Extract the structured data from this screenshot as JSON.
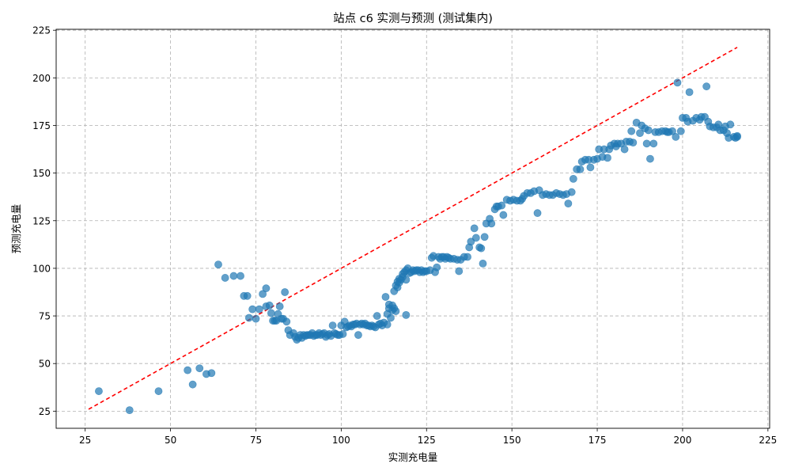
{
  "chart_data": {
    "type": "scatter",
    "title": "站点 c6 实测与预测 (测试集内)",
    "xlabel": "实测充电量",
    "ylabel": "预测充电量",
    "xlim": [
      16.5,
      225.5
    ],
    "ylim": [
      16,
      225.5
    ],
    "xticks": [
      25,
      50,
      75,
      100,
      125,
      150,
      175,
      200,
      225
    ],
    "yticks": [
      25,
      50,
      75,
      100,
      125,
      150,
      175,
      200,
      225
    ],
    "grid": true,
    "point_color": "#1f77b4",
    "reference_line": {
      "style": "dashed",
      "color": "#ff0000",
      "from": [
        26,
        26
      ],
      "to": [
        216,
        216
      ]
    },
    "points": [
      [
        29,
        35.5
      ],
      [
        38,
        25.5
      ],
      [
        46.5,
        35.5
      ],
      [
        55,
        46.5
      ],
      [
        56.5,
        39
      ],
      [
        58.5,
        47.5
      ],
      [
        60.5,
        44.5
      ],
      [
        62,
        45
      ],
      [
        64,
        102
      ],
      [
        66,
        95
      ],
      [
        68.5,
        96
      ],
      [
        70.5,
        96
      ],
      [
        71.5,
        85.5
      ],
      [
        72.5,
        85.5
      ],
      [
        73,
        74
      ],
      [
        74,
        78.5
      ],
      [
        75,
        73.5
      ],
      [
        76,
        78.5
      ],
      [
        77,
        86.5
      ],
      [
        78,
        80
      ],
      [
        78,
        89.5
      ],
      [
        79,
        80.5
      ],
      [
        79.5,
        76.5
      ],
      [
        80,
        72.5
      ],
      [
        80.5,
        72.5
      ],
      [
        81,
        72.5
      ],
      [
        81.5,
        76
      ],
      [
        82,
        80
      ],
      [
        82.5,
        73.5
      ],
      [
        83,
        73.5
      ],
      [
        83.5,
        87.5
      ],
      [
        84,
        72
      ],
      [
        84.5,
        67.5
      ],
      [
        85,
        65
      ],
      [
        86,
        66
      ],
      [
        86.5,
        64
      ],
      [
        87,
        62.5
      ],
      [
        87.5,
        63.5
      ],
      [
        88,
        65
      ],
      [
        88.5,
        63.5
      ],
      [
        89,
        65
      ],
      [
        89.5,
        64.5
      ],
      [
        90,
        65
      ],
      [
        90.5,
        65
      ],
      [
        91,
        65
      ],
      [
        91.5,
        66
      ],
      [
        92,
        64.5
      ],
      [
        92.5,
        65
      ],
      [
        93,
        65
      ],
      [
        93.5,
        66
      ],
      [
        94,
        65
      ],
      [
        94.5,
        65.5
      ],
      [
        95,
        66
      ],
      [
        95.5,
        64
      ],
      [
        96,
        65
      ],
      [
        96.5,
        65.5
      ],
      [
        97,
        64.5
      ],
      [
        97.5,
        70
      ],
      [
        98,
        66
      ],
      [
        98.5,
        65.5
      ],
      [
        99,
        65
      ],
      [
        99.5,
        65
      ],
      [
        100,
        70
      ],
      [
        100.5,
        65.5
      ],
      [
        101,
        72
      ],
      [
        101.5,
        69
      ],
      [
        102,
        69.5
      ],
      [
        102.5,
        70
      ],
      [
        103,
        69.5
      ],
      [
        103.5,
        70.5
      ],
      [
        104,
        70.5
      ],
      [
        104.5,
        71
      ],
      [
        105,
        65
      ],
      [
        105.5,
        70.5
      ],
      [
        106,
        71
      ],
      [
        106.5,
        70.5
      ],
      [
        107,
        71
      ],
      [
        107.5,
        70
      ],
      [
        108,
        70
      ],
      [
        108.5,
        69.5
      ],
      [
        109,
        70
      ],
      [
        109.5,
        69.5
      ],
      [
        110,
        69
      ],
      [
        110.5,
        75
      ],
      [
        111,
        70.5
      ],
      [
        111.5,
        71
      ],
      [
        112,
        70
      ],
      [
        112.5,
        71.5
      ],
      [
        113,
        85
      ],
      [
        113.5,
        70.5
      ],
      [
        113.5,
        76
      ],
      [
        114,
        79
      ],
      [
        114,
        81
      ],
      [
        114.5,
        74
      ],
      [
        115,
        78
      ],
      [
        115,
        80.5
      ],
      [
        115.5,
        79
      ],
      [
        115.5,
        88
      ],
      [
        116,
        91
      ],
      [
        116,
        77.5
      ],
      [
        116.5,
        93
      ],
      [
        116.5,
        90
      ],
      [
        117,
        92.5
      ],
      [
        117,
        94.5
      ],
      [
        117.5,
        94
      ],
      [
        118,
        95.5
      ],
      [
        118,
        97
      ],
      [
        118.5,
        98
      ],
      [
        119,
        94
      ],
      [
        119,
        99
      ],
      [
        119,
        75.5
      ],
      [
        119.5,
        100
      ],
      [
        120,
        97.5
      ],
      [
        120.5,
        98
      ],
      [
        121,
        99
      ],
      [
        121.5,
        98.5
      ],
      [
        122,
        99
      ],
      [
        122.5,
        99
      ],
      [
        123,
        98
      ],
      [
        123.5,
        99
      ],
      [
        124,
        98
      ],
      [
        124.5,
        98.5
      ],
      [
        125,
        98.5
      ],
      [
        126,
        99
      ],
      [
        126.5,
        105.5
      ],
      [
        127,
        106.5
      ],
      [
        127.5,
        98
      ],
      [
        128,
        100.5
      ],
      [
        128.5,
        106
      ],
      [
        129,
        105
      ],
      [
        129.5,
        106
      ],
      [
        130,
        106
      ],
      [
        130.5,
        105
      ],
      [
        131,
        106
      ],
      [
        131.5,
        105.5
      ],
      [
        132,
        105
      ],
      [
        133,
        105
      ],
      [
        134,
        104.5
      ],
      [
        134.5,
        98.5
      ],
      [
        135,
        104.5
      ],
      [
        136,
        106
      ],
      [
        137,
        106
      ],
      [
        137.5,
        111
      ],
      [
        138,
        114
      ],
      [
        139,
        121
      ],
      [
        139.5,
        116
      ],
      [
        140.5,
        111
      ],
      [
        141,
        110.5
      ],
      [
        141.5,
        102.5
      ],
      [
        142,
        116.5
      ],
      [
        142.5,
        123.5
      ],
      [
        143.5,
        126
      ],
      [
        144,
        123.5
      ],
      [
        145,
        131
      ],
      [
        145.5,
        132.5
      ],
      [
        146,
        132.5
      ],
      [
        147,
        133
      ],
      [
        147.5,
        128
      ],
      [
        148.5,
        136
      ],
      [
        149.5,
        135.5
      ],
      [
        150.5,
        136
      ],
      [
        151.5,
        135.5
      ],
      [
        152.5,
        135.5
      ],
      [
        153,
        136.5
      ],
      [
        153.5,
        138
      ],
      [
        154.5,
        139.5
      ],
      [
        155.5,
        139.5
      ],
      [
        156.5,
        140.5
      ],
      [
        157.5,
        129
      ],
      [
        158,
        141
      ],
      [
        159,
        138.5
      ],
      [
        160,
        139
      ],
      [
        161,
        138.5
      ],
      [
        162,
        138.5
      ],
      [
        163,
        139.5
      ],
      [
        164,
        139
      ],
      [
        165,
        138.5
      ],
      [
        166,
        139
      ],
      [
        166.5,
        134
      ],
      [
        167.5,
        140
      ],
      [
        168,
        147
      ],
      [
        169,
        152
      ],
      [
        170,
        152
      ],
      [
        170.5,
        156
      ],
      [
        171.5,
        157
      ],
      [
        172.5,
        157
      ],
      [
        173,
        153
      ],
      [
        174,
        157
      ],
      [
        175,
        157.5
      ],
      [
        175.5,
        162.5
      ],
      [
        176.5,
        158.5
      ],
      [
        177,
        162.5
      ],
      [
        178,
        158
      ],
      [
        178.5,
        162.5
      ],
      [
        179,
        164.5
      ],
      [
        180,
        165.5
      ],
      [
        180.5,
        164
      ],
      [
        181,
        165.5
      ],
      [
        182,
        165.5
      ],
      [
        183,
        162.5
      ],
      [
        183.5,
        166.5
      ],
      [
        184.5,
        166.5
      ],
      [
        185,
        172
      ],
      [
        185.5,
        166
      ],
      [
        186.5,
        176.5
      ],
      [
        187.5,
        171
      ],
      [
        188,
        175
      ],
      [
        189,
        173.5
      ],
      [
        189.5,
        165.5
      ],
      [
        190,
        172.5
      ],
      [
        190.5,
        157.5
      ],
      [
        191.5,
        165.5
      ],
      [
        192,
        171.5
      ],
      [
        193,
        171.5
      ],
      [
        194,
        172
      ],
      [
        195,
        172
      ],
      [
        195.5,
        171.5
      ],
      [
        196,
        171.5
      ],
      [
        197,
        172
      ],
      [
        198,
        169
      ],
      [
        198.5,
        197.5
      ],
      [
        199.5,
        172
      ],
      [
        200,
        179
      ],
      [
        201,
        179
      ],
      [
        201.5,
        177
      ],
      [
        202,
        192.5
      ],
      [
        203,
        177.5
      ],
      [
        204,
        179
      ],
      [
        205,
        178
      ],
      [
        205.5,
        179.5
      ],
      [
        206.5,
        179.5
      ],
      [
        207,
        195.5
      ],
      [
        207.5,
        177
      ],
      [
        208,
        174.5
      ],
      [
        209,
        174
      ],
      [
        210,
        174
      ],
      [
        210.5,
        175.5
      ],
      [
        211,
        172.5
      ],
      [
        212,
        172.5
      ],
      [
        212.5,
        174.5
      ],
      [
        213,
        171
      ],
      [
        213.5,
        168.5
      ],
      [
        214,
        175.5
      ],
      [
        215,
        169
      ],
      [
        215.5,
        168.5
      ],
      [
        216,
        169.5
      ],
      [
        216,
        169
      ]
    ]
  }
}
